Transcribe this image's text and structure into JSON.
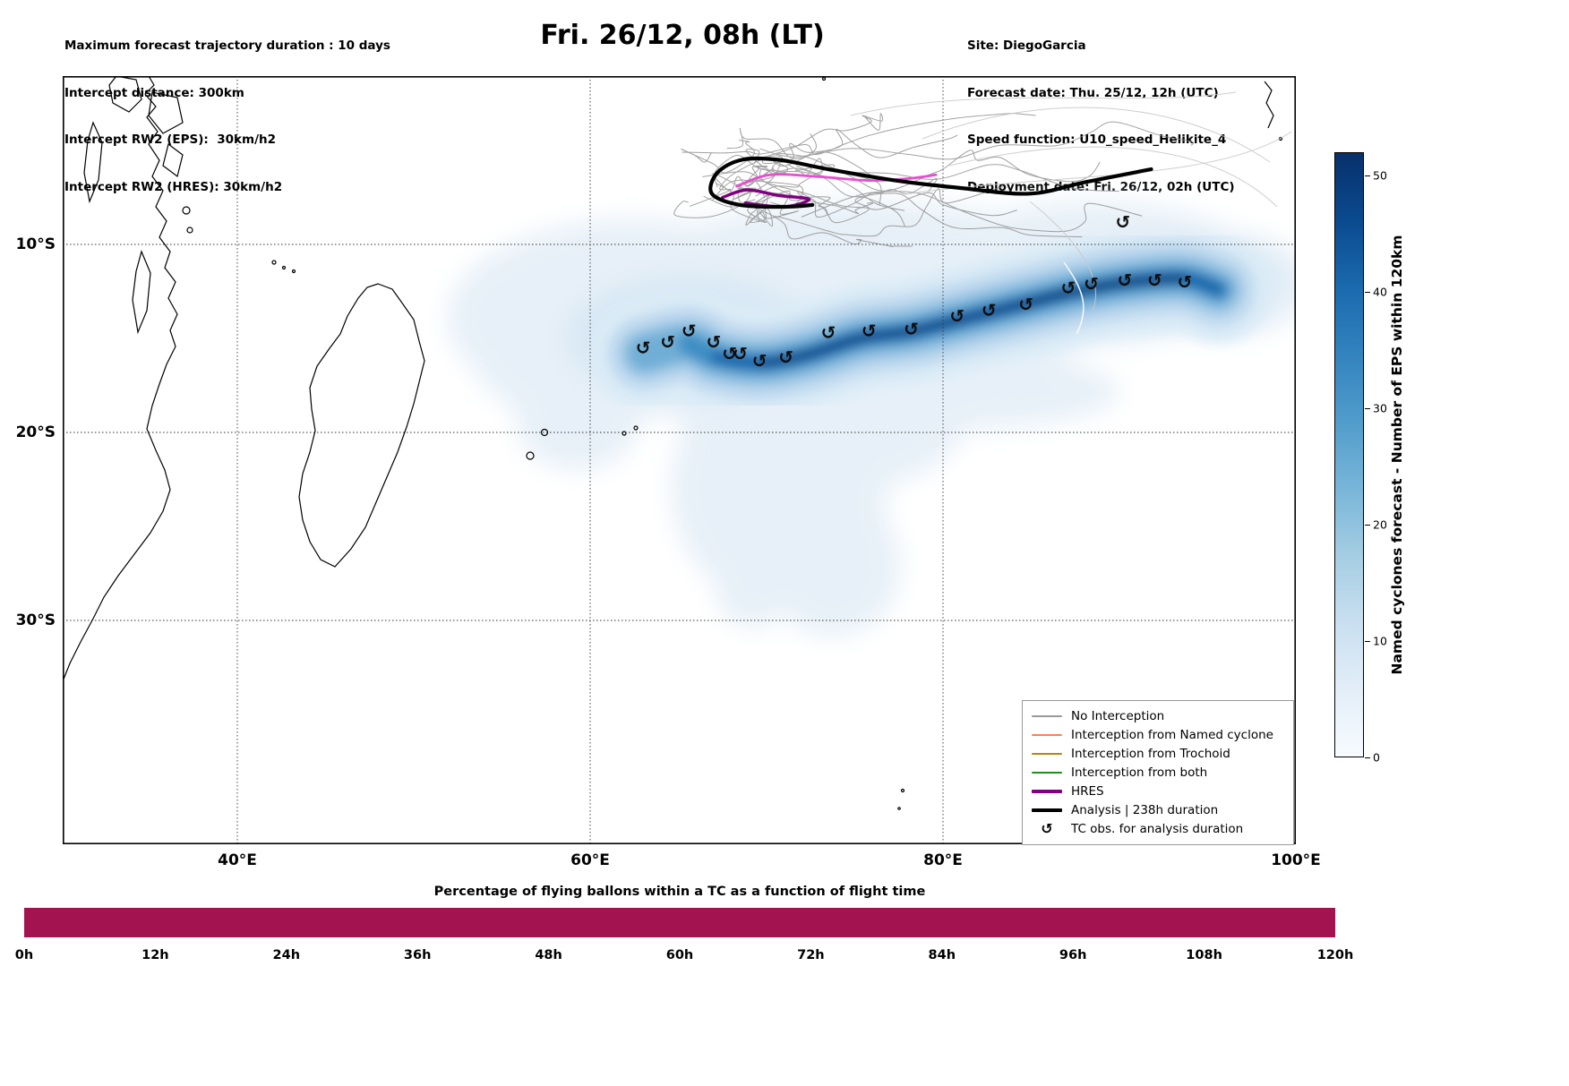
{
  "header": {
    "left_lines": [
      "Maximum forecast trajectory duration : 10 days",
      "Intercept distance: 300km",
      "Intercept RW2 (EPS):  30km/h2",
      "Intercept RW2 (HRES): 30km/h2"
    ],
    "title": "Fri. 26/12, 08h (LT)",
    "right_lines": [
      "Site: DiegoGarcia",
      "Forecast date: Thu. 25/12, 12h (UTC)",
      "Speed function: U10_speed_Helikite_4",
      "Deployment date: Fri. 26/12, 02h (UTC)"
    ]
  },
  "map": {
    "x_tick_labels": [
      "40°E",
      "60°E",
      "80°E",
      "100°E"
    ],
    "y_tick_labels": [
      "10°S",
      "20°S",
      "30°S"
    ],
    "tc_symbol": "↺",
    "legend": [
      {
        "label": "No Interception",
        "color": "#999999",
        "weight": 1.5,
        "type": "line"
      },
      {
        "label": "Interception from Named cyclone",
        "color": "#ff7f50",
        "weight": 1.5,
        "type": "line"
      },
      {
        "label": "Interception from Trochoid",
        "color": "#b8860b",
        "weight": 1.5,
        "type": "line"
      },
      {
        "label": "Interception from both",
        "color": "#228b22",
        "weight": 1.5,
        "type": "line"
      },
      {
        "label": "HRES",
        "color": "#800080",
        "weight": 4,
        "type": "line"
      },
      {
        "label": "Analysis | 238h duration",
        "color": "#000000",
        "weight": 4,
        "type": "line"
      },
      {
        "label": "TC obs. for analysis duration",
        "color": "#000000",
        "type": "symbol"
      }
    ]
  },
  "colorbar": {
    "label": "Named cyclones forecast - Number of EPS within 120km",
    "ticks": [
      0,
      10,
      20,
      30,
      40,
      50
    ],
    "vmax": 52
  },
  "bottom_chart": {
    "title": "Percentage of flying ballons within a TC as a function of flight time",
    "x_tick_labels": [
      "0h",
      "12h",
      "24h",
      "36h",
      "48h",
      "60h",
      "72h",
      "84h",
      "96h",
      "108h",
      "120h"
    ],
    "bar_color": "#a3134f",
    "value_percent": 100
  },
  "chart_data": [
    {
      "type": "heatmap",
      "title": "Fri. 26/12, 08h (LT)",
      "lon_ticks": [
        40,
        60,
        80,
        100
      ],
      "lat_ticks": [
        -10,
        -20,
        -30
      ],
      "lon_range": [
        30.1,
        100.0
      ],
      "lat_range": [
        -41.9,
        -1.0
      ],
      "colorbar_label": "Named cyclones forecast - Number of EPS within 120km",
      "colorbar_ticks": [
        0,
        10,
        20,
        30,
        40,
        50
      ],
      "colorbar_max": 52,
      "density_core_track": [
        [
          63.1,
          -15.8
        ],
        [
          65.6,
          -15.3
        ],
        [
          67.2,
          -16.0
        ],
        [
          69.7,
          -16.3
        ],
        [
          72.2,
          -15.9
        ],
        [
          75.3,
          -15.0
        ],
        [
          78.3,
          -14.6
        ],
        [
          81.4,
          -13.9
        ],
        [
          84.4,
          -13.2
        ],
        [
          87.5,
          -12.5
        ],
        [
          90.5,
          -12.0
        ],
        [
          93.6,
          -11.8
        ],
        [
          95.6,
          -12.4
        ]
      ],
      "tc_obs_lonlat": [
        [
          63.0,
          -15.5
        ],
        [
          64.4,
          -15.2
        ],
        [
          65.6,
          -14.6
        ],
        [
          67.0,
          -15.2
        ],
        [
          67.9,
          -15.8
        ],
        [
          68.5,
          -15.8
        ],
        [
          69.6,
          -16.2
        ],
        [
          71.1,
          -16.0
        ],
        [
          73.5,
          -14.7
        ],
        [
          75.8,
          -14.6
        ],
        [
          78.2,
          -14.5
        ],
        [
          80.8,
          -13.8
        ],
        [
          82.6,
          -13.5
        ],
        [
          84.7,
          -13.2
        ],
        [
          87.1,
          -12.3
        ],
        [
          88.4,
          -12.1
        ],
        [
          90.3,
          -11.9
        ],
        [
          92.0,
          -11.9
        ],
        [
          93.7,
          -12.0
        ],
        [
          90.2,
          -8.8
        ]
      ],
      "analysis_track": [
        [
          91.8,
          -6.0
        ],
        [
          88.0,
          -6.7
        ],
        [
          84.9,
          -7.3
        ],
        [
          81.0,
          -7.0
        ],
        [
          77.3,
          -6.6
        ],
        [
          73.5,
          -6.0
        ],
        [
          70.7,
          -5.5
        ],
        [
          68.6,
          -5.5
        ],
        [
          67.2,
          -6.2
        ],
        [
          66.9,
          -7.3
        ],
        [
          68.5,
          -7.9
        ],
        [
          71.0,
          -8.0
        ],
        [
          72.6,
          -7.9
        ]
      ],
      "hres_track": [
        [
          67.5,
          -7.5
        ],
        [
          68.9,
          -7.1
        ],
        [
          70.7,
          -7.4
        ],
        [
          72.4,
          -7.6
        ],
        [
          71.0,
          -8.0
        ],
        [
          68.8,
          -7.8
        ]
      ],
      "named_cyclone_track": [
        [
          68.3,
          -6.9
        ],
        [
          70.2,
          -6.3
        ],
        [
          73.0,
          -6.4
        ],
        [
          75.8,
          -6.6
        ],
        [
          78.0,
          -6.5
        ],
        [
          79.6,
          -6.3
        ]
      ]
    },
    {
      "type": "bar",
      "title": "Percentage of flying ballons within a TC as a function of flight time",
      "x_hours": [
        0,
        12,
        24,
        36,
        48,
        60,
        72,
        84,
        96,
        108,
        120
      ],
      "value_percent": 100,
      "bar_color": "#a3134f"
    }
  ]
}
